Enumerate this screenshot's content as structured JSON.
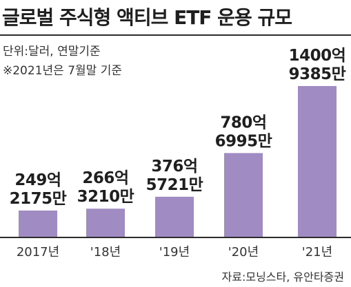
{
  "chart_data": {
    "type": "bar",
    "title": "글로벌 주식형 액티브 ETF 운용 규모",
    "unit_note": "단위:달러, 연말기준",
    "footnote": "※2021년은 7월말 기준",
    "source": "자료:모닝스타, 유안타증권",
    "categories": [
      "2017년",
      "'18년",
      "'19년",
      "'20년",
      "'21년"
    ],
    "values": [
      24921750000,
      26632100000,
      37657210000,
      78069950000,
      140093850000
    ],
    "value_labels": [
      [
        "249억",
        "2175만"
      ],
      [
        "266억",
        "3210만"
      ],
      [
        "376억",
        "5721만"
      ],
      [
        "780억",
        "6995만"
      ],
      [
        "1400억",
        "9385만"
      ]
    ],
    "bar_color": "#a08cc2",
    "axis_color": "#2b2b2b",
    "grid": false,
    "legend": "none"
  }
}
